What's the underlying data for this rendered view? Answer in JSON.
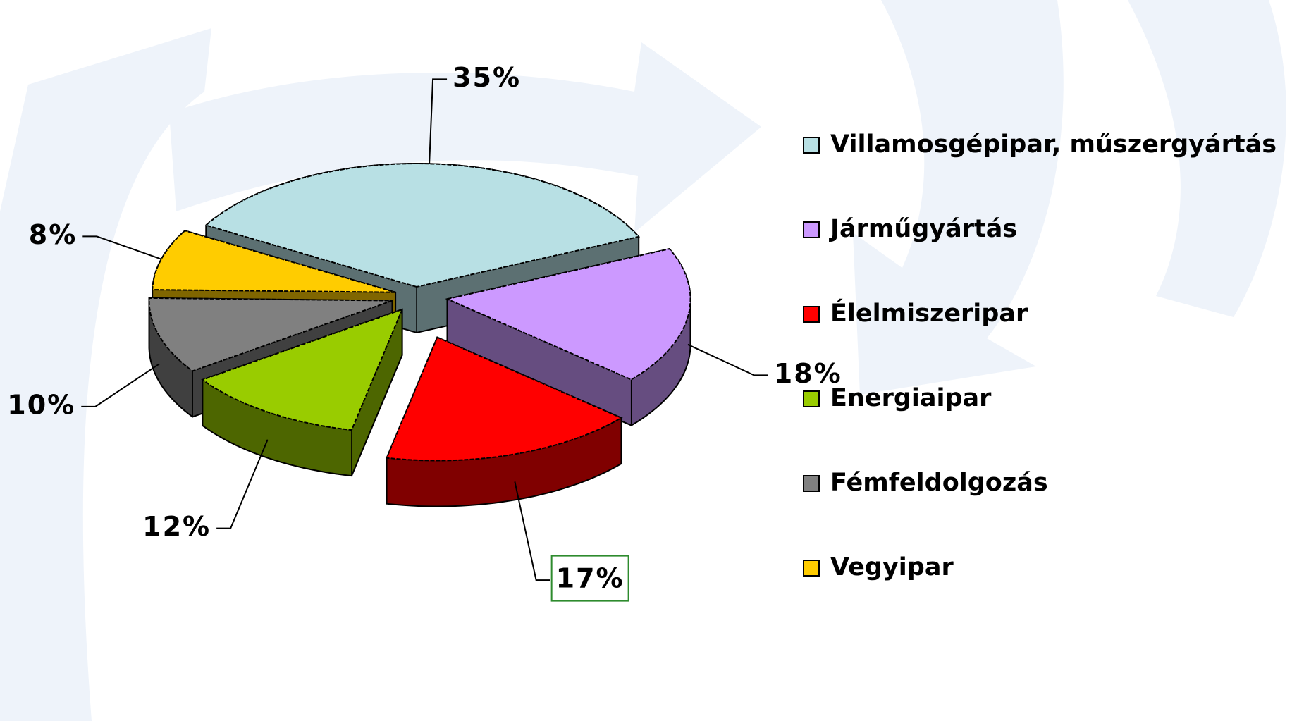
{
  "chart_data": {
    "type": "pie",
    "categories": [
      "Villamosgépipar, műszergyártás",
      "Járműgyártás",
      "Élelmiszeripar",
      "Energiaipar",
      "Fémfeldolgozás",
      "Vegyipar"
    ],
    "values": [
      35,
      18,
      17,
      12,
      10,
      8
    ],
    "value_labels": [
      "35%",
      "18%",
      "17%",
      "12%",
      "10%",
      "8%"
    ],
    "colors": [
      "#b8e0e4",
      "#cc99ff",
      "#ff0000",
      "#99cc00",
      "#808080",
      "#ffcc00"
    ],
    "legend": "right"
  }
}
